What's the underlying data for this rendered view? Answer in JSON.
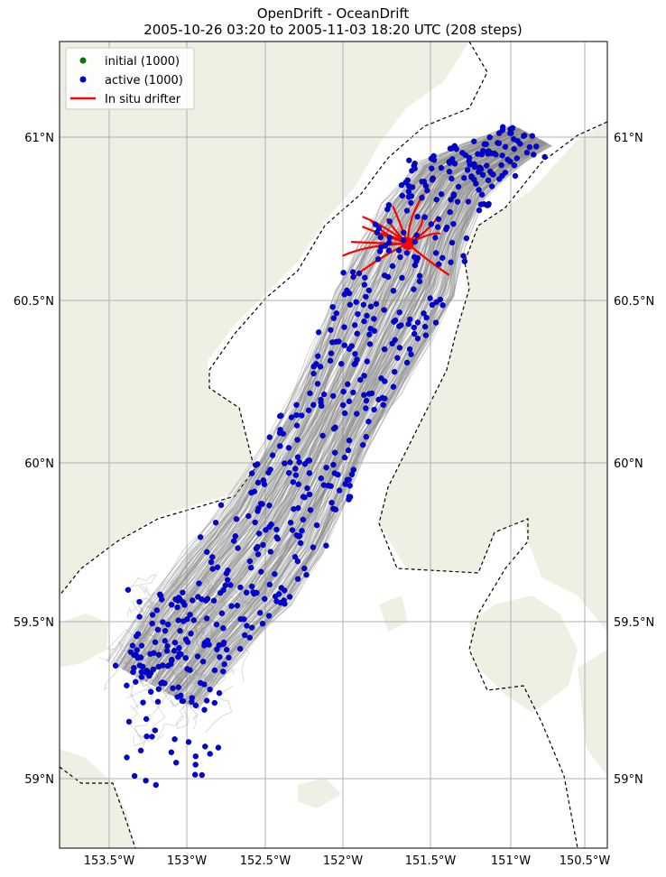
{
  "title": {
    "line1": "OpenDrift - OceanDrift",
    "line2": "2005-10-26 03:20 to 2005-11-03 18:20 UTC (208 steps)"
  },
  "legend": {
    "placement": "top-left",
    "items": [
      {
        "label": "initial (1000)",
        "color": "#007a00",
        "marker": "dot"
      },
      {
        "label": "active (1000)",
        "color": "#0000dd",
        "marker": "dot"
      },
      {
        "label": "In situ drifter",
        "color": "#ff0000",
        "marker": "line"
      }
    ]
  },
  "axes": {
    "lon_ticks": [
      "153.5°W",
      "153°W",
      "152.5°W",
      "152°W",
      "151.5°W",
      "151°W",
      "150.5°W"
    ],
    "lat_ticks": [
      "61°N",
      "60.5°N",
      "60°N",
      "59.5°N",
      "59°N"
    ],
    "lon_range": [
      -153.82,
      -150.42
    ],
    "lat_range": [
      58.78,
      61.3
    ],
    "grid": true
  },
  "colors": {
    "land": "#efefe4",
    "ocean": "#ffffff",
    "trajectory": "#8a8a8a",
    "coast_boundary": "#000000",
    "active": "#0000dd",
    "drifter": "#ff0000"
  }
}
